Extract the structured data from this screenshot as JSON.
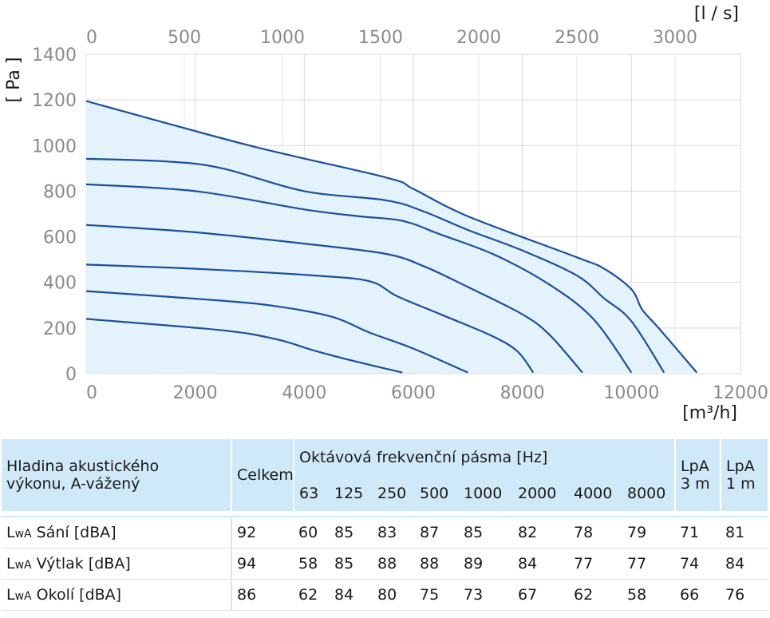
{
  "chart_data": {
    "type": "line",
    "x_label_unit": "[m³/h]",
    "x2_label_unit": "[l / s]",
    "y_label_unit": "[ Pa ]",
    "xlim": [
      0,
      12000
    ],
    "ylim": [
      0,
      1400
    ],
    "x_ticks": [
      "0",
      "2000",
      "4000",
      "6000",
      "8000",
      "10000",
      "12000"
    ],
    "x2_ticks": [
      "0",
      "500",
      "1000",
      "1500",
      "2000",
      "2500",
      "3000"
    ],
    "x2_tick_values_m3h": [
      0,
      1800,
      3600,
      5400,
      7200,
      9000,
      10800
    ],
    "y_ticks": [
      "0",
      "200",
      "400",
      "600",
      "800",
      "1000",
      "1200",
      "1400"
    ],
    "grid": true,
    "fill_color": "#e3f2fb",
    "line_color": "#1b4f9c",
    "series": [
      {
        "points": [
          [
            0,
            1195
          ],
          [
            3000,
            1000
          ],
          [
            5500,
            860
          ],
          [
            6000,
            810
          ],
          [
            7000,
            690
          ],
          [
            9000,
            510
          ],
          [
            9500,
            460
          ],
          [
            10000,
            370
          ],
          [
            10200,
            280
          ],
          [
            10500,
            200
          ],
          [
            11200,
            5
          ]
        ]
      },
      {
        "points": [
          [
            0,
            942
          ],
          [
            1500,
            930
          ],
          [
            2500,
            900
          ],
          [
            4000,
            800
          ],
          [
            5500,
            760
          ],
          [
            6200,
            710
          ],
          [
            7000,
            630
          ],
          [
            8000,
            540
          ],
          [
            9000,
            430
          ],
          [
            9500,
            330
          ],
          [
            10000,
            230
          ],
          [
            10600,
            5
          ]
        ]
      },
      {
        "points": [
          [
            0,
            830
          ],
          [
            2000,
            800
          ],
          [
            4000,
            720
          ],
          [
            5000,
            690
          ],
          [
            5800,
            670
          ],
          [
            6500,
            610
          ],
          [
            7500,
            520
          ],
          [
            8500,
            390
          ],
          [
            9300,
            240
          ],
          [
            10000,
            5
          ]
        ]
      },
      {
        "points": [
          [
            0,
            652
          ],
          [
            2000,
            620
          ],
          [
            4000,
            570
          ],
          [
            5500,
            525
          ],
          [
            6200,
            470
          ],
          [
            7000,
            380
          ],
          [
            8000,
            260
          ],
          [
            8500,
            170
          ],
          [
            9100,
            5
          ]
        ]
      },
      {
        "points": [
          [
            0,
            478
          ],
          [
            2000,
            460
          ],
          [
            4200,
            430
          ],
          [
            5200,
            405
          ],
          [
            5700,
            340
          ],
          [
            6500,
            260
          ],
          [
            7400,
            170
          ],
          [
            7900,
            100
          ],
          [
            8200,
            5
          ]
        ]
      },
      {
        "points": [
          [
            0,
            362
          ],
          [
            2500,
            320
          ],
          [
            3500,
            295
          ],
          [
            4500,
            250
          ],
          [
            5200,
            180
          ],
          [
            6000,
            110
          ],
          [
            7000,
            5
          ]
        ]
      },
      {
        "points": [
          [
            0,
            240
          ],
          [
            2500,
            190
          ],
          [
            3500,
            150
          ],
          [
            4200,
            100
          ],
          [
            5000,
            50
          ],
          [
            5800,
            5
          ]
        ]
      }
    ]
  },
  "table": {
    "header_label": [
      "Hladina akustického",
      "výkonu, A-vážený"
    ],
    "celkem": "Celkem",
    "band_title": "Oktávová frekvenční pásma [Hz]",
    "bands": [
      "63",
      "125",
      "250",
      "500",
      "1000",
      "2000",
      "4000",
      "8000"
    ],
    "lpa3": [
      "LpA",
      "3 m"
    ],
    "lpa1": [
      "LpA",
      "1 m"
    ],
    "rows": [
      {
        "prefix": "L",
        "sub": "wA",
        "label": " Sání [dBA]",
        "celkem": "92",
        "values": [
          "60",
          "85",
          "83",
          "87",
          "85",
          "82",
          "78",
          "79"
        ],
        "lpa3": "71",
        "lpa1": "81"
      },
      {
        "prefix": "L",
        "sub": "wA",
        "label": " Výtlak [dBA]",
        "celkem": "94",
        "values": [
          "58",
          "85",
          "88",
          "88",
          "89",
          "84",
          "77",
          "77"
        ],
        "lpa3": "74",
        "lpa1": "84"
      },
      {
        "prefix": "L",
        "sub": "wA",
        "label": " Okolí [dBA]",
        "celkem": "86",
        "values": [
          "62",
          "84",
          "80",
          "75",
          "73",
          "67",
          "62",
          "58"
        ],
        "lpa3": "66",
        "lpa1": "76"
      }
    ]
  }
}
